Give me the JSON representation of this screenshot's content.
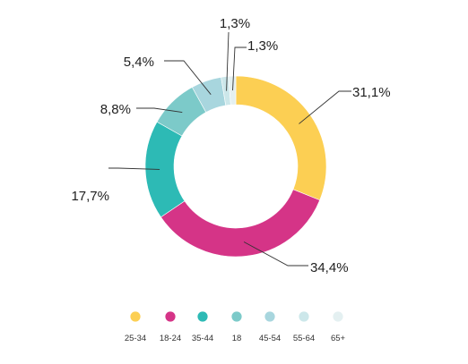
{
  "chart_data": {
    "type": "pie",
    "variant": "donut",
    "title": "",
    "categories": [
      "25-34",
      "18-24",
      "35-44",
      "18",
      "45-54",
      "55-64",
      "65+"
    ],
    "values": [
      31.1,
      34.4,
      17.7,
      8.8,
      5.4,
      1.3,
      1.3
    ],
    "labels": [
      "31,1%",
      "34,4%",
      "17,7%",
      "8,8%",
      "5,4%",
      "1,3%",
      "1,3%"
    ],
    "colors": [
      "#FCCF53",
      "#D53487",
      "#2DBAB5",
      "#7CCAC9",
      "#A8D6DE",
      "#CCE7EA",
      "#E4F0F1"
    ],
    "legend_placement": "bottom"
  }
}
